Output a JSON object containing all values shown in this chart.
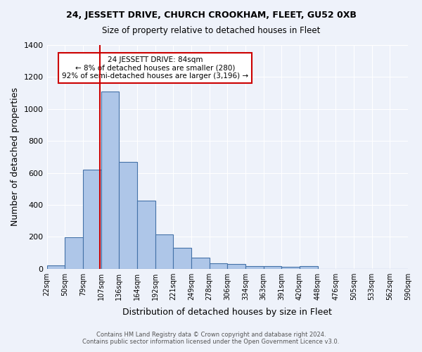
{
  "title": "24, JESSETT DRIVE, CHURCH CROOKHAM, FLEET, GU52 0XB",
  "subtitle": "Size of property relative to detached houses in Fleet",
  "xlabel": "Distribution of detached houses by size in Fleet",
  "ylabel": "Number of detached properties",
  "footer_line1": "Contains HM Land Registry data © Crown copyright and database right 2024.",
  "footer_line2": "Contains public sector information licensed under the Open Government Licence v3.0.",
  "bin_labels": [
    "22sqm",
    "50sqm",
    "79sqm",
    "107sqm",
    "136sqm",
    "164sqm",
    "192sqm",
    "221sqm",
    "249sqm",
    "278sqm",
    "306sqm",
    "334sqm",
    "363sqm",
    "391sqm",
    "420sqm",
    "448sqm",
    "476sqm",
    "505sqm",
    "533sqm",
    "562sqm",
    "590sqm"
  ],
  "bar_values": [
    20,
    195,
    620,
    1110,
    670,
    425,
    215,
    130,
    70,
    35,
    30,
    18,
    15,
    10,
    15,
    0,
    0,
    0,
    0,
    0
  ],
  "bar_color": "#aec6e8",
  "bar_edge_color": "#4472a8",
  "bg_color": "#eef2fa",
  "grid_color": "#ffffff",
  "vline_color": "#cc0000",
  "vline_pos": 2.45,
  "annotation_text": "24 JESSETT DRIVE: 84sqm\n← 8% of detached houses are smaller (280)\n92% of semi-detached houses are larger (3,196) →",
  "annotation_box_color": "#ffffff",
  "annotation_box_edge": "#cc0000",
  "ylim": [
    0,
    1400
  ],
  "yticks": [
    0,
    200,
    400,
    600,
    800,
    1000,
    1200,
    1400
  ]
}
